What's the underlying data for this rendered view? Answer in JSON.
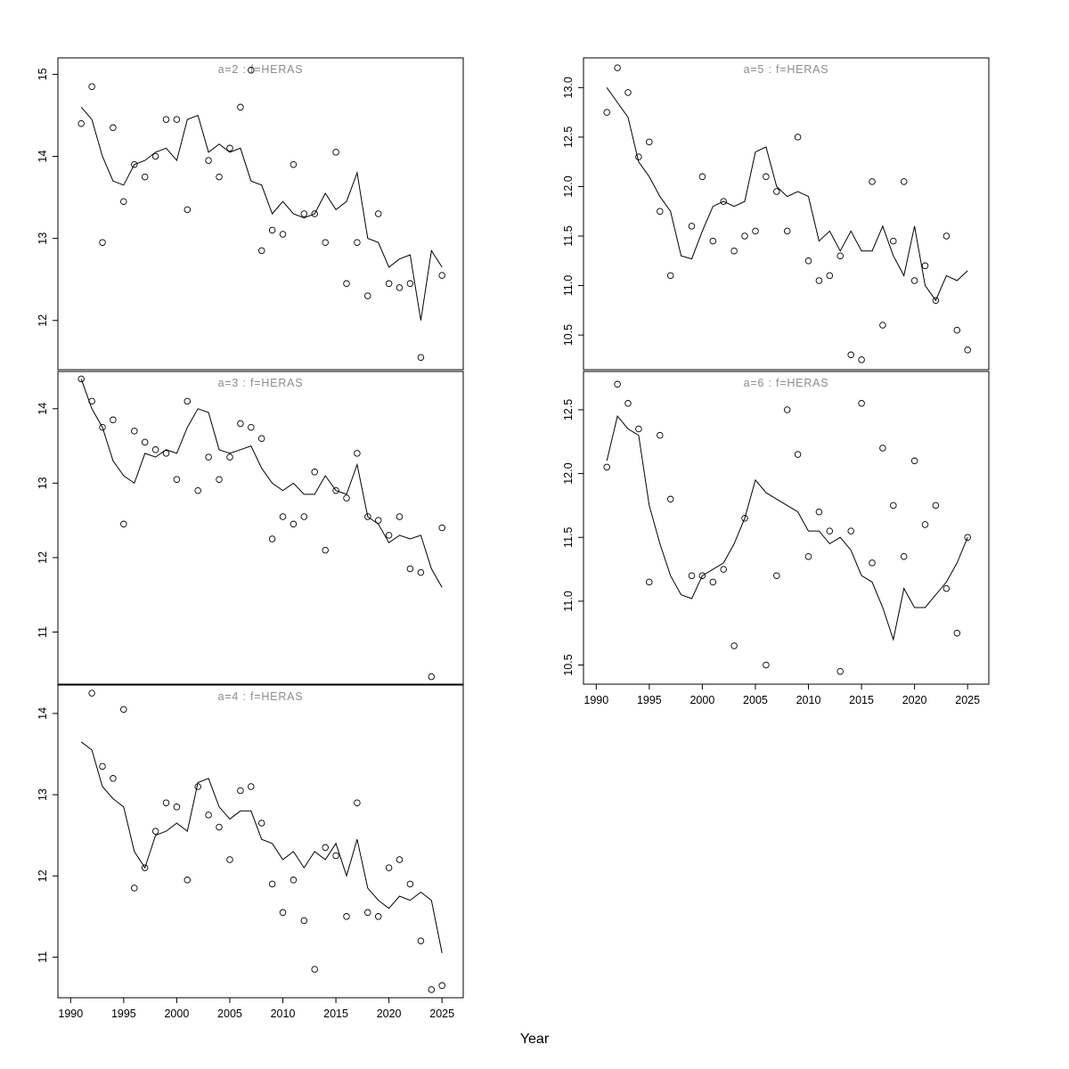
{
  "figure": {
    "xlabel": "Year",
    "colors": {
      "line": "#000000",
      "point": "#000000",
      "title": "#8c8c8c",
      "axis": "#000000",
      "text": "#000000"
    },
    "xlim": [
      1988.8,
      2027.0
    ],
    "x_ticks": [
      1990,
      1995,
      2000,
      2005,
      2010,
      2015,
      2020,
      2025
    ],
    "x_tick_labels": [
      "1990",
      "1995",
      "2000",
      "2005",
      "2010",
      "2015",
      "2020",
      "2025"
    ],
    "line_years": [
      1991,
      1992,
      1993,
      1994,
      1995,
      1996,
      1997,
      1998,
      1999,
      2000,
      2001,
      2002,
      2003,
      2004,
      2005,
      2006,
      2007,
      2008,
      2009,
      2010,
      2011,
      2012,
      2013,
      2014,
      2015,
      2016,
      2017,
      2018,
      2019,
      2020,
      2021,
      2022,
      2023,
      2024,
      2025
    ]
  },
  "chart_data": [
    {
      "id": "a2",
      "type": "line",
      "title": "a=2  :  f=HERAS",
      "ylim": [
        11.4,
        15.2
      ],
      "y_ticks": [
        12,
        13,
        14,
        15
      ],
      "y_tick_labels": [
        "12",
        "13",
        "14",
        "15"
      ],
      "line": [
        14.6,
        14.45,
        14.0,
        13.7,
        13.65,
        13.9,
        13.95,
        14.05,
        14.1,
        13.95,
        14.45,
        14.5,
        14.05,
        14.15,
        14.05,
        14.1,
        13.7,
        13.65,
        13.3,
        13.45,
        13.3,
        13.25,
        13.3,
        13.55,
        13.35,
        13.45,
        13.8,
        13.0,
        12.95,
        12.65,
        12.75,
        12.8,
        12.0,
        12.85,
        12.65
      ],
      "points": [
        [
          1991,
          14.4
        ],
        [
          1992,
          14.85
        ],
        [
          1993,
          12.95
        ],
        [
          1994,
          14.35
        ],
        [
          1995,
          13.45
        ],
        [
          1996,
          13.9
        ],
        [
          1997,
          13.75
        ],
        [
          1998,
          14.0
        ],
        [
          1999,
          14.45
        ],
        [
          2000,
          14.45
        ],
        [
          2001,
          13.35
        ],
        [
          2003,
          13.95
        ],
        [
          2004,
          13.75
        ],
        [
          2005,
          14.1
        ],
        [
          2006,
          14.6
        ],
        [
          2007,
          15.05
        ],
        [
          2008,
          12.85
        ],
        [
          2009,
          13.1
        ],
        [
          2010,
          13.05
        ],
        [
          2011,
          13.9
        ],
        [
          2012,
          13.3
        ],
        [
          2013,
          13.3
        ],
        [
          2014,
          12.95
        ],
        [
          2015,
          14.05
        ],
        [
          2016,
          12.45
        ],
        [
          2017,
          12.95
        ],
        [
          2018,
          12.3
        ],
        [
          2019,
          13.3
        ],
        [
          2020,
          12.45
        ],
        [
          2021,
          12.4
        ],
        [
          2022,
          12.45
        ],
        [
          2023,
          11.55
        ],
        [
          2025,
          12.55
        ]
      ]
    },
    {
      "id": "a3",
      "type": "line",
      "title": "a=3  :  f=HERAS",
      "ylim": [
        10.3,
        14.5
      ],
      "y_ticks": [
        11,
        12,
        13,
        14
      ],
      "y_tick_labels": [
        "11",
        "12",
        "13",
        "14"
      ],
      "line": [
        14.4,
        14.0,
        13.75,
        13.3,
        13.1,
        13.0,
        13.4,
        13.35,
        13.45,
        13.4,
        13.75,
        14.0,
        13.95,
        13.45,
        13.4,
        13.45,
        13.5,
        13.2,
        13.0,
        12.9,
        13.0,
        12.85,
        12.85,
        13.1,
        12.9,
        12.85,
        13.25,
        12.55,
        12.45,
        12.2,
        12.3,
        12.25,
        12.3,
        11.85,
        11.6
      ],
      "points": [
        [
          1991,
          14.4
        ],
        [
          1992,
          14.1
        ],
        [
          1993,
          13.75
        ],
        [
          1994,
          13.85
        ],
        [
          1995,
          12.45
        ],
        [
          1996,
          13.7
        ],
        [
          1997,
          13.55
        ],
        [
          1998,
          13.45
        ],
        [
          1999,
          13.4
        ],
        [
          2000,
          13.05
        ],
        [
          2001,
          14.1
        ],
        [
          2002,
          12.9
        ],
        [
          2003,
          13.35
        ],
        [
          2004,
          13.05
        ],
        [
          2005,
          13.35
        ],
        [
          2006,
          13.8
        ],
        [
          2007,
          13.75
        ],
        [
          2008,
          13.6
        ],
        [
          2009,
          12.25
        ],
        [
          2010,
          12.55
        ],
        [
          2011,
          12.45
        ],
        [
          2012,
          12.55
        ],
        [
          2013,
          13.15
        ],
        [
          2014,
          12.1
        ],
        [
          2015,
          12.9
        ],
        [
          2016,
          12.8
        ],
        [
          2017,
          13.4
        ],
        [
          2018,
          12.55
        ],
        [
          2019,
          12.5
        ],
        [
          2020,
          12.3
        ],
        [
          2021,
          12.55
        ],
        [
          2022,
          11.85
        ],
        [
          2023,
          11.8
        ],
        [
          2024,
          10.4
        ],
        [
          2025,
          12.4
        ]
      ]
    },
    {
      "id": "a4",
      "type": "line",
      "title": "a=4  :  f=HERAS",
      "ylim": [
        10.5,
        14.35
      ],
      "y_ticks": [
        11,
        12,
        13,
        14
      ],
      "y_tick_labels": [
        "11",
        "12",
        "13",
        "14"
      ],
      "line": [
        13.65,
        13.55,
        13.1,
        12.95,
        12.85,
        12.3,
        12.1,
        12.5,
        12.55,
        12.65,
        12.55,
        13.15,
        13.2,
        12.85,
        12.7,
        12.8,
        12.8,
        12.45,
        12.4,
        12.2,
        12.3,
        12.1,
        12.3,
        12.2,
        12.4,
        12.0,
        12.45,
        11.85,
        11.7,
        11.6,
        11.75,
        11.7,
        11.8,
        11.7,
        11.05
      ],
      "points": [
        [
          1992,
          14.25
        ],
        [
          1993,
          13.35
        ],
        [
          1994,
          13.2
        ],
        [
          1995,
          14.05
        ],
        [
          1996,
          11.85
        ],
        [
          1997,
          12.1
        ],
        [
          1998,
          12.55
        ],
        [
          1999,
          12.9
        ],
        [
          2000,
          12.85
        ],
        [
          2001,
          11.95
        ],
        [
          2002,
          13.1
        ],
        [
          2003,
          12.75
        ],
        [
          2004,
          12.6
        ],
        [
          2005,
          12.2
        ],
        [
          2006,
          13.05
        ],
        [
          2007,
          13.1
        ],
        [
          2008,
          12.65
        ],
        [
          2009,
          11.9
        ],
        [
          2010,
          11.55
        ],
        [
          2011,
          11.95
        ],
        [
          2012,
          11.45
        ],
        [
          2013,
          10.85
        ],
        [
          2014,
          12.35
        ],
        [
          2015,
          12.25
        ],
        [
          2016,
          11.5
        ],
        [
          2017,
          12.9
        ],
        [
          2018,
          11.55
        ],
        [
          2019,
          11.5
        ],
        [
          2020,
          12.1
        ],
        [
          2021,
          12.2
        ],
        [
          2022,
          11.9
        ],
        [
          2023,
          11.2
        ],
        [
          2024,
          10.6
        ],
        [
          2025,
          10.65
        ]
      ]
    },
    {
      "id": "a5",
      "type": "line",
      "title": "a=5  :  f=HERAS",
      "ylim": [
        10.15,
        13.3
      ],
      "y_ticks": [
        10.5,
        11.0,
        11.5,
        12.0,
        12.5,
        13.0
      ],
      "y_tick_labels": [
        "10.5",
        "11.0",
        "11.5",
        "12.0",
        "12.5",
        "13.0"
      ],
      "line": [
        13.0,
        12.85,
        12.7,
        12.25,
        12.1,
        11.9,
        11.75,
        11.3,
        11.27,
        11.55,
        11.8,
        11.85,
        11.8,
        11.85,
        12.35,
        12.4,
        12.0,
        11.9,
        11.95,
        11.9,
        11.45,
        11.55,
        11.35,
        11.55,
        11.35,
        11.35,
        11.6,
        11.3,
        11.1,
        11.6,
        11.0,
        10.85,
        11.1,
        11.05,
        11.15
      ],
      "points": [
        [
          1991,
          12.75
        ],
        [
          1992,
          13.2
        ],
        [
          1993,
          12.95
        ],
        [
          1994,
          12.3
        ],
        [
          1995,
          12.45
        ],
        [
          1996,
          11.75
        ],
        [
          1997,
          11.1
        ],
        [
          1999,
          11.6
        ],
        [
          2000,
          12.1
        ],
        [
          2001,
          11.45
        ],
        [
          2002,
          11.85
        ],
        [
          2003,
          11.35
        ],
        [
          2004,
          11.5
        ],
        [
          2005,
          11.55
        ],
        [
          2006,
          12.1
        ],
        [
          2007,
          11.95
        ],
        [
          2008,
          11.55
        ],
        [
          2009,
          12.5
        ],
        [
          2010,
          11.25
        ],
        [
          2011,
          11.05
        ],
        [
          2012,
          11.1
        ],
        [
          2013,
          11.3
        ],
        [
          2014,
          10.3
        ],
        [
          2015,
          10.25
        ],
        [
          2016,
          12.05
        ],
        [
          2017,
          10.6
        ],
        [
          2018,
          11.45
        ],
        [
          2019,
          12.05
        ],
        [
          2020,
          11.05
        ],
        [
          2021,
          11.2
        ],
        [
          2022,
          10.85
        ],
        [
          2023,
          11.5
        ],
        [
          2024,
          10.55
        ],
        [
          2025,
          10.35
        ]
      ]
    },
    {
      "id": "a6",
      "type": "line",
      "title": "a=6  :  f=HERAS",
      "ylim": [
        10.35,
        12.8
      ],
      "y_ticks": [
        10.5,
        11.0,
        11.5,
        12.0,
        12.5
      ],
      "y_tick_labels": [
        "10.5",
        "11.0",
        "11.5",
        "12.0",
        "12.5"
      ],
      "line": [
        12.1,
        12.45,
        12.35,
        12.3,
        11.75,
        11.45,
        11.2,
        11.05,
        11.02,
        11.2,
        11.25,
        11.3,
        11.45,
        11.65,
        11.95,
        11.85,
        11.8,
        11.75,
        11.7,
        11.55,
        11.55,
        11.45,
        11.5,
        11.4,
        11.2,
        11.15,
        10.95,
        10.7,
        11.1,
        10.95,
        10.95,
        11.05,
        11.15,
        11.3,
        11.5
      ],
      "points": [
        [
          1991,
          12.05
        ],
        [
          1992,
          12.7
        ],
        [
          1993,
          12.55
        ],
        [
          1994,
          12.35
        ],
        [
          1995,
          11.15
        ],
        [
          1996,
          12.3
        ],
        [
          1997,
          11.8
        ],
        [
          1999,
          11.2
        ],
        [
          2000,
          11.2
        ],
        [
          2001,
          11.15
        ],
        [
          2002,
          11.25
        ],
        [
          2003,
          10.65
        ],
        [
          2004,
          11.65
        ],
        [
          2006,
          10.5
        ],
        [
          2007,
          11.2
        ],
        [
          2008,
          12.5
        ],
        [
          2009,
          12.15
        ],
        [
          2010,
          11.35
        ],
        [
          2011,
          11.7
        ],
        [
          2012,
          11.55
        ],
        [
          2013,
          10.45
        ],
        [
          2014,
          11.55
        ],
        [
          2015,
          12.55
        ],
        [
          2016,
          11.3
        ],
        [
          2017,
          12.2
        ],
        [
          2018,
          11.75
        ],
        [
          2019,
          11.35
        ],
        [
          2020,
          12.1
        ],
        [
          2021,
          11.6
        ],
        [
          2022,
          11.75
        ],
        [
          2023,
          11.1
        ],
        [
          2024,
          10.75
        ],
        [
          2025,
          11.5
        ]
      ]
    }
  ]
}
